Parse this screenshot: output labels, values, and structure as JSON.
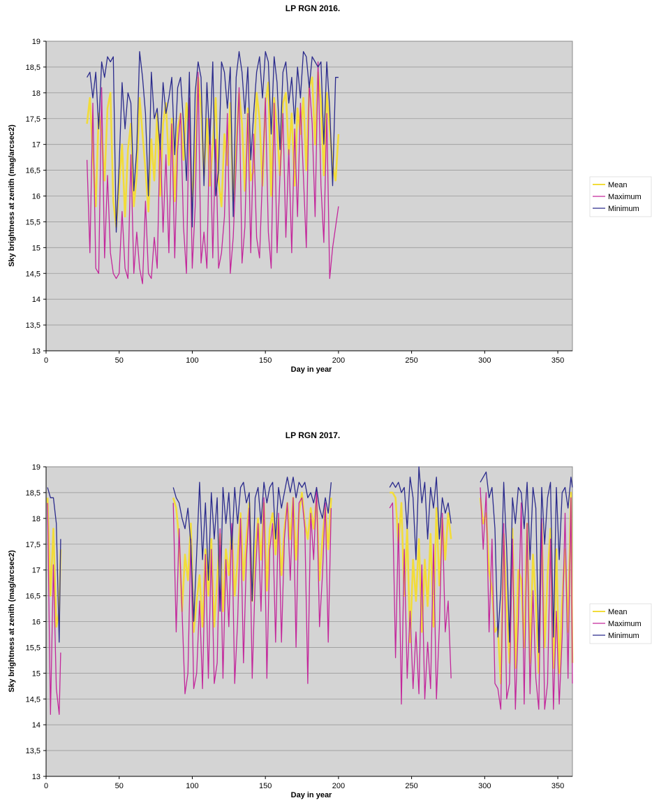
{
  "chart_data": [
    {
      "type": "line",
      "title": "LP RGN 2016.",
      "xlabel": "Day in year",
      "ylabel": "Sky brightness at zenith (mag/arcsec2)",
      "xlim": [
        0,
        360
      ],
      "ylim": [
        13,
        19
      ],
      "xticks": [
        "0",
        "50",
        "100",
        "150",
        "200",
        "250",
        "300",
        "350"
      ],
      "yticks": [
        "13",
        "13,5",
        "14",
        "14,5",
        "15",
        "15,5",
        "16",
        "16,5",
        "17",
        "17,5",
        "18",
        "18,5",
        "19"
      ],
      "grid": "horizontal",
      "legend_position": "right",
      "colors": {
        "Mean": "#f2dc3a",
        "Maximum": "#c3279b",
        "Minimum": "#2a2a8c",
        "plot_bg": "#d4d4d4"
      },
      "x": [
        28,
        30,
        32,
        34,
        36,
        38,
        40,
        42,
        44,
        46,
        48,
        50,
        52,
        54,
        56,
        58,
        60,
        62,
        64,
        66,
        68,
        70,
        72,
        74,
        76,
        78,
        80,
        82,
        84,
        86,
        88,
        90,
        92,
        94,
        96,
        98,
        100,
        102,
        104,
        106,
        108,
        110,
        112,
        114,
        116,
        118,
        120,
        122,
        124,
        126,
        128,
        130,
        132,
        134,
        136,
        138,
        140,
        142,
        144,
        146,
        148,
        150,
        152,
        154,
        156,
        158,
        160,
        162,
        164,
        166,
        168,
        170,
        172,
        174,
        176,
        178,
        180,
        182,
        184,
        186,
        188,
        190,
        192,
        194,
        196,
        198,
        200
      ],
      "series": [
        {
          "name": "Mean",
          "values": [
            17.4,
            17.9,
            16.8,
            15.8,
            17.6,
            17.2,
            16.3,
            17.7,
            18.0,
            15.9,
            15.4,
            16.2,
            17.0,
            15.6,
            16.9,
            17.4,
            15.8,
            16.4,
            17.9,
            17.2,
            16.5,
            15.7,
            17.1,
            16.3,
            17.6,
            16.0,
            17.4,
            17.8,
            16.6,
            17.5,
            15.9,
            17.3,
            17.6,
            16.7,
            17.8,
            17.2,
            15.9,
            16.8,
            18.3,
            17.7,
            16.4,
            17.5,
            16.2,
            17.0,
            17.9,
            16.3,
            15.8,
            17.2,
            16.6,
            17.8,
            15.9,
            16.9,
            18.0,
            17.4,
            16.1,
            17.7,
            16.3,
            16.5,
            18.0,
            17.5,
            16.2,
            17.8,
            18.2,
            16.0,
            17.9,
            17.3,
            16.4,
            17.8,
            18.0,
            16.8,
            17.6,
            16.2,
            17.7,
            17.2,
            17.9,
            16.5,
            18.1,
            18.3,
            17.0,
            18.4,
            17.8,
            16.4,
            18.0,
            17.3,
            16.6,
            16.3,
            17.2
          ]
        },
        {
          "name": "Maximum",
          "values": [
            16.7,
            14.9,
            17.8,
            14.6,
            14.5,
            18.1,
            14.8,
            16.4,
            14.9,
            14.5,
            14.4,
            14.5,
            15.7,
            14.6,
            14.4,
            16.8,
            14.5,
            15.3,
            14.6,
            14.3,
            15.9,
            14.5,
            14.4,
            15.2,
            14.6,
            17.2,
            15.3,
            16.8,
            14.9,
            17.4,
            14.8,
            16.9,
            17.6,
            15.4,
            14.5,
            17.9,
            14.6,
            15.8,
            18.4,
            14.7,
            15.3,
            14.6,
            17.5,
            14.8,
            17.1,
            14.6,
            14.9,
            15.6,
            17.6,
            14.5,
            15.2,
            16.6,
            18.1,
            14.7,
            15.4,
            17.6,
            14.9,
            17.2,
            15.2,
            14.8,
            16.4,
            17.9,
            15.3,
            14.6,
            17.8,
            14.9,
            16.4,
            17.6,
            15.2,
            16.9,
            14.9,
            17.3,
            15.6,
            17.8,
            16.4,
            15.0,
            18.2,
            17.4,
            15.6,
            18.6,
            16.2,
            15.1,
            17.6,
            14.4,
            15.0,
            15.4,
            15.8
          ]
        },
        {
          "name": "Minimum",
          "values": [
            18.3,
            18.4,
            17.9,
            18.4,
            17.3,
            18.6,
            18.3,
            18.7,
            18.6,
            18.7,
            15.3,
            16.6,
            18.2,
            17.3,
            18.0,
            17.8,
            16.1,
            16.9,
            18.8,
            18.3,
            17.6,
            16.0,
            18.4,
            17.5,
            17.7,
            16.9,
            18.2,
            17.6,
            17.9,
            18.3,
            16.8,
            18.1,
            18.3,
            17.4,
            16.3,
            18.4,
            15.4,
            18.0,
            18.6,
            18.3,
            16.2,
            18.2,
            17.0,
            18.6,
            16.0,
            16.5,
            18.6,
            18.4,
            17.7,
            18.5,
            15.6,
            18.3,
            18.8,
            18.4,
            17.6,
            18.5,
            16.7,
            17.6,
            18.4,
            18.7,
            17.9,
            18.8,
            18.6,
            17.2,
            18.7,
            18.2,
            16.9,
            18.4,
            18.6,
            17.8,
            18.3,
            17.4,
            18.5,
            17.9,
            18.8,
            18.7,
            18.1,
            18.7,
            18.6,
            18.5,
            18.6,
            17.0,
            18.6,
            17.7,
            16.2,
            18.3,
            18.3
          ]
        }
      ]
    },
    {
      "type": "line",
      "title": "LP RGN 2017.",
      "xlabel": "Day in year",
      "ylabel": "Sky brightness at zenith (mag/arcsec2)",
      "xlim": [
        0,
        360
      ],
      "ylim": [
        13,
        19
      ],
      "xticks": [
        "0",
        "50",
        "100",
        "150",
        "200",
        "250",
        "300",
        "350"
      ],
      "yticks": [
        "13",
        "13,5",
        "14",
        "14,5",
        "15",
        "15,5",
        "16",
        "16,5",
        "17",
        "17,5",
        "18",
        "18,5",
        "19"
      ],
      "grid": "horizontal",
      "legend_position": "right",
      "colors": {
        "Mean": "#f2dc3a",
        "Maximum": "#c3279b",
        "Minimum": "#2a2a8c",
        "plot_bg": "#d4d4d4"
      },
      "segments": [
        {
          "x": [
            1,
            3,
            5,
            7,
            9,
            10
          ],
          "series": [
            {
              "name": "Mean",
              "values": [
                18.4,
                16.5,
                17.8,
                15.9,
                16.2,
                17.4
              ]
            },
            {
              "name": "Maximum",
              "values": [
                18.3,
                14.2,
                17.1,
                14.7,
                14.2,
                15.4
              ]
            },
            {
              "name": "Minimum",
              "values": [
                18.6,
                18.4,
                18.4,
                17.9,
                15.6,
                17.6
              ]
            }
          ]
        },
        {
          "x": [
            87,
            89,
            91,
            93,
            95,
            97,
            99,
            101,
            103,
            105,
            107,
            109,
            111,
            113,
            115,
            117,
            119,
            121,
            123,
            125,
            127,
            129,
            131,
            133,
            135,
            137,
            139,
            141,
            143,
            145,
            147,
            149,
            151,
            153,
            155,
            157,
            159,
            161,
            163,
            165,
            167,
            169,
            171,
            173,
            175,
            177,
            179,
            181,
            183,
            185,
            187,
            189,
            191,
            193,
            195
          ],
          "series": [
            {
              "name": "Mean",
              "values": [
                18.4,
                18.2,
                17.6,
                16.2,
                17.3,
                16.8,
                17.9,
                15.8,
                16.4,
                16.9,
                15.9,
                17.4,
                16.5,
                17.6,
                15.9,
                16.8,
                17.7,
                16.2,
                17.4,
                16.9,
                17.8,
                16.5,
                17.2,
                18.1,
                16.8,
                17.6,
                18.3,
                16.4,
                17.4,
                18.0,
                17.2,
                18.3,
                16.6,
                17.8,
                18.1,
                17.3,
                18.0,
                16.9,
                17.8,
                18.3,
                17.6,
                18.4,
                17.2,
                18.1,
                18.5,
                17.9,
                17.6,
                18.2,
                17.8,
                18.4,
                16.8,
                17.6,
                18.2,
                17.4,
                18.4
              ]
            },
            {
              "name": "Maximum",
              "values": [
                18.3,
                15.8,
                17.8,
                16.2,
                14.6,
                15.0,
                17.6,
                14.7,
                15.0,
                16.4,
                14.7,
                17.3,
                14.9,
                17.4,
                14.8,
                15.2,
                17.8,
                14.9,
                17.2,
                15.9,
                17.9,
                14.8,
                16.0,
                18.0,
                15.2,
                17.2,
                18.2,
                14.9,
                16.8,
                17.9,
                16.2,
                18.4,
                14.9,
                17.4,
                17.9,
                15.6,
                18.1,
                15.6,
                17.6,
                18.3,
                16.8,
                18.4,
                15.5,
                18.3,
                18.4,
                17.8,
                14.8,
                18.1,
                17.2,
                18.6,
                15.9,
                16.9,
                18.3,
                15.6,
                18.2
              ]
            },
            {
              "name": "Minimum",
              "values": [
                18.6,
                18.4,
                18.3,
                18.0,
                17.8,
                18.2,
                17.5,
                16.0,
                17.3,
                18.7,
                17.2,
                18.3,
                16.8,
                18.5,
                17.6,
                18.4,
                16.2,
                18.6,
                17.9,
                18.5,
                17.4,
                18.6,
                17.9,
                18.6,
                18.7,
                18.3,
                18.5,
                16.4,
                18.4,
                18.6,
                17.9,
                18.7,
                18.3,
                18.6,
                18.7,
                17.6,
                18.6,
                18.2,
                18.5,
                18.8,
                18.5,
                18.8,
                18.4,
                18.7,
                18.6,
                18.7,
                18.4,
                18.5,
                18.3,
                18.6,
                18.2,
                18.0,
                18.4,
                18.1,
                18.7
              ]
            }
          ]
        },
        {
          "x": [
            235,
            237,
            239,
            241,
            243,
            245,
            247,
            249,
            251,
            253,
            255,
            257,
            259,
            261,
            263,
            265,
            267,
            269,
            271,
            273,
            275,
            277
          ],
          "series": [
            {
              "name": "Mean",
              "values": [
                18.5,
                18.5,
                18.4,
                17.5,
                18.3,
                16.5,
                17.8,
                15.6,
                17.2,
                16.4,
                17.6,
                15.8,
                17.2,
                16.3,
                17.7,
                15.9,
                18.2,
                16.7,
                18.0,
                17.2,
                18.1,
                17.6
              ]
            },
            {
              "name": "Maximum",
              "values": [
                18.2,
                18.3,
                15.3,
                17.9,
                14.4,
                17.4,
                14.9,
                16.2,
                14.7,
                15.8,
                14.6,
                17.1,
                14.5,
                15.6,
                14.7,
                17.5,
                14.5,
                15.9,
                18.1,
                15.8,
                16.4,
                14.9
              ]
            },
            {
              "name": "Minimum",
              "values": [
                18.6,
                18.7,
                18.6,
                18.7,
                18.5,
                18.6,
                17.8,
                18.8,
                18.4,
                17.2,
                19.0,
                18.3,
                18.7,
                17.6,
                18.6,
                18.2,
                18.8,
                17.6,
                18.4,
                18.1,
                18.3,
                17.9
              ]
            }
          ]
        },
        {
          "x": [
            297,
            299,
            301,
            303,
            305,
            307,
            309,
            311,
            313,
            315,
            317,
            319,
            321,
            323,
            325,
            327,
            329,
            331,
            333,
            335,
            337,
            339,
            341,
            343,
            345,
            347,
            349,
            351,
            353,
            355,
            357,
            359,
            360
          ],
          "series": [
            {
              "name": "Mean",
              "values": [
                18.4,
                17.9,
                18.1,
                17.0,
                16.6,
                15.8,
                15.9,
                14.8,
                17.7,
                16.3,
                15.2,
                17.8,
                15.1,
                17.0,
                16.8,
                15.5,
                17.9,
                15.2,
                17.3,
                16.4,
                15.0,
                17.9,
                15.5,
                16.9,
                17.8,
                15.1,
                17.4,
                15.0,
                16.4,
                17.4,
                15.8,
                18.5,
                15.2
              ]
            },
            {
              "name": "Maximum",
              "values": [
                18.6,
                17.4,
                18.5,
                15.8,
                17.6,
                14.8,
                14.7,
                14.3,
                17.9,
                14.5,
                14.8,
                17.6,
                14.3,
                16.0,
                18.3,
                14.4,
                17.9,
                14.6,
                16.6,
                14.9,
                14.3,
                18.0,
                14.3,
                14.8,
                17.6,
                14.3,
                16.2,
                14.4,
                15.7,
                18.1,
                14.9,
                18.4,
                14.8
              ]
            },
            {
              "name": "Minimum",
              "values": [
                18.7,
                18.8,
                18.9,
                18.4,
                18.6,
                17.8,
                15.7,
                16.6,
                18.7,
                17.4,
                15.6,
                18.4,
                17.9,
                18.6,
                18.5,
                17.8,
                18.7,
                17.2,
                18.6,
                18.2,
                15.4,
                18.6,
                17.5,
                18.4,
                18.7,
                15.7,
                18.6,
                17.2,
                18.5,
                18.6,
                18.2,
                18.8,
                18.6
              ]
            }
          ]
        }
      ]
    }
  ]
}
